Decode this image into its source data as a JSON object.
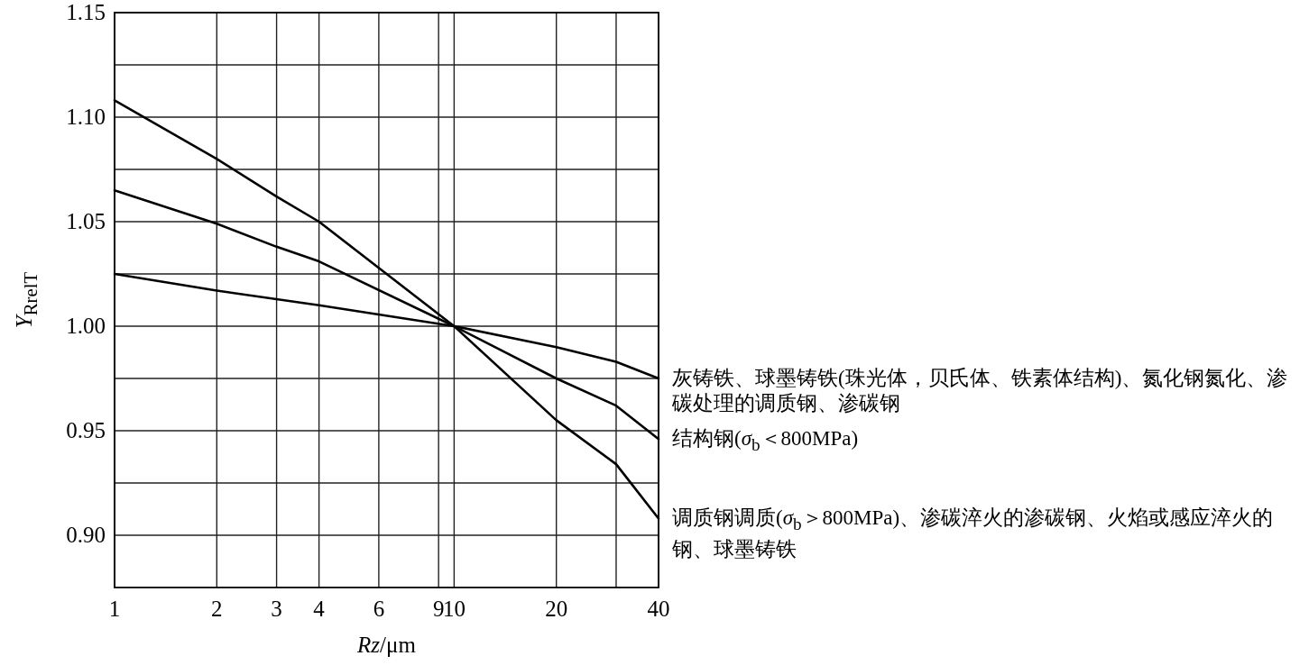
{
  "chart_data": {
    "type": "line",
    "xlabel": "*Rz*/μm",
    "ylabel": "*Y*$_{RrelT}$",
    "log": "x",
    "grid": true,
    "xlim": [
      1,
      40
    ],
    "ylim": [
      0.875,
      1.15
    ],
    "xticks": [
      1,
      2,
      3,
      4,
      6,
      9,
      10,
      20,
      {
        "value": 30,
        "label": null
      },
      40
    ],
    "yticks": [
      {
        "value": 0.9,
        "label": "0.90"
      },
      {
        "value": 0.925,
        "label": null
      },
      0.95,
      {
        "value": 0.975,
        "label": null
      },
      {
        "value": 1.0,
        "label": "1.00"
      },
      {
        "value": 1.025,
        "label": null
      },
      1.05,
      {
        "value": 1.075,
        "label": null
      },
      {
        "value": 1.1,
        "label": "1.10"
      },
      {
        "value": 1.125,
        "label": null
      },
      1.15
    ],
    "series": [
      {
        "name": "灰铸铁、球墨铸铁(珠光体，贝氏体、铁素体结构)、氮化钢氮化、渗碳处理的调质钢、渗碳钢",
        "color": "#000000",
        "x": [
          1,
          2,
          4,
          10,
          20,
          30,
          40
        ],
        "values": [
          1.025,
          1.017,
          1.01,
          1.0,
          0.99,
          0.983,
          0.975
        ]
      },
      {
        "name": "结构钢(*σ*$_{b}$＜800MPa)",
        "color": "#000000",
        "x": [
          1,
          2,
          3,
          4,
          10,
          20,
          30,
          40
        ],
        "values": [
          1.065,
          1.049,
          1.038,
          1.031,
          1.0,
          0.975,
          0.962,
          0.946
        ]
      },
      {
        "name": "调质钢调质(*σ*$_{b}$＞800MPa)、渗碳淬火的渗碳钢、火焰或感应淬火的钢、球墨铸铁",
        "color": "#000000",
        "x": [
          1,
          2,
          3,
          4,
          10,
          20,
          30,
          40
        ],
        "values": [
          1.108,
          1.08,
          1.062,
          1.05,
          1.0,
          0.955,
          0.934,
          0.908
        ]
      }
    ]
  }
}
